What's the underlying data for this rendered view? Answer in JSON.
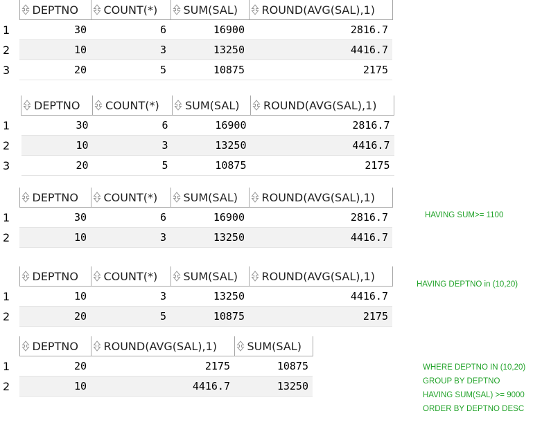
{
  "colors": {
    "annotation": "#22a32a",
    "grid_border": "#a7a7a7",
    "alt_row": "#f2f2f2"
  },
  "icons": {
    "column_header": "sort-arrows-icon"
  },
  "grids": [
    {
      "columns": [
        "DEPTNO",
        "COUNT(*)",
        "SUM(SAL)",
        "ROUND(AVG(SAL),1)"
      ],
      "rows": [
        {
          "n": "1",
          "c": [
            "30",
            "6",
            "16900",
            "2816.7"
          ]
        },
        {
          "n": "2",
          "c": [
            "10",
            "3",
            "13250",
            "4416.7"
          ]
        },
        {
          "n": "3",
          "c": [
            "20",
            "5",
            "10875",
            "2175"
          ]
        }
      ]
    },
    {
      "columns": [
        "DEPTNO",
        "COUNT(*)",
        "SUM(SAL)",
        "ROUND(AVG(SAL),1)"
      ],
      "rows": [
        {
          "n": "1",
          "c": [
            "30",
            "6",
            "16900",
            "2816.7"
          ]
        },
        {
          "n": "2",
          "c": [
            "10",
            "3",
            "13250",
            "4416.7"
          ]
        },
        {
          "n": "3",
          "c": [
            "20",
            "5",
            "10875",
            "2175"
          ]
        }
      ]
    },
    {
      "columns": [
        "DEPTNO",
        "COUNT(*)",
        "SUM(SAL)",
        "ROUND(AVG(SAL),1)"
      ],
      "rows": [
        {
          "n": "1",
          "c": [
            "30",
            "6",
            "16900",
            "2816.7"
          ]
        },
        {
          "n": "2",
          "c": [
            "10",
            "3",
            "13250",
            "4416.7"
          ]
        }
      ]
    },
    {
      "columns": [
        "DEPTNO",
        "COUNT(*)",
        "SUM(SAL)",
        "ROUND(AVG(SAL),1)"
      ],
      "rows": [
        {
          "n": "1",
          "c": [
            "10",
            "3",
            "13250",
            "4416.7"
          ]
        },
        {
          "n": "2",
          "c": [
            "20",
            "5",
            "10875",
            "2175"
          ]
        }
      ]
    },
    {
      "columns": [
        "DEPTNO",
        "ROUND(AVG(SAL),1)",
        "SUM(SAL)"
      ],
      "rows": [
        {
          "n": "1",
          "c": [
            "20",
            "2175",
            "10875"
          ]
        },
        {
          "n": "2",
          "c": [
            "10",
            "4416.7",
            "13250"
          ]
        }
      ]
    }
  ],
  "annotations": {
    "a1": [
      "HAVING SUM>= 1100"
    ],
    "a2": [
      "HAVING DEPTNO in (10,20)"
    ],
    "a3": [
      "WHERE DEPTNO IN (10,20)",
      "GROUP BY DEPTNO",
      "HAVING SUM(SAL) >= 9000",
      "ORDER BY DEPTNO DESC"
    ]
  }
}
